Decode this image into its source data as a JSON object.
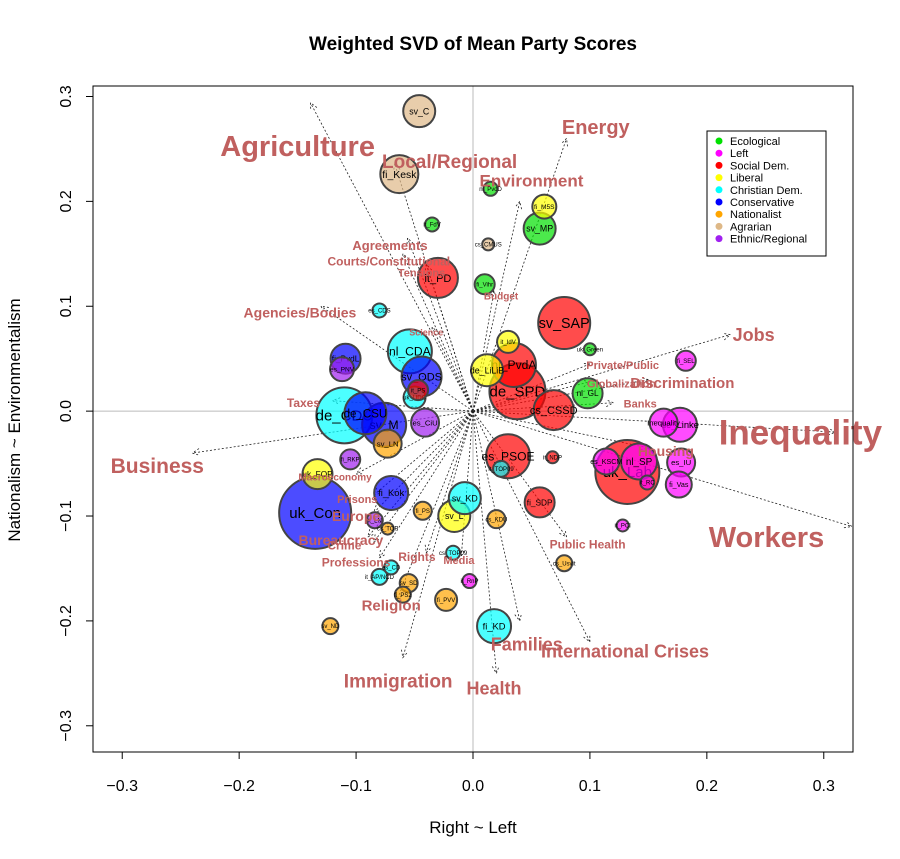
{
  "chart_data": {
    "type": "scatter",
    "title": "Weighted SVD of Mean Party Scores",
    "xlabel": "Right ~ Left",
    "ylabel": "Nationalism ~ Environmentalism",
    "xlim": [
      -0.325,
      0.325
    ],
    "ylim": [
      -0.325,
      0.31
    ],
    "xticks": [
      {
        "v": -0.3,
        "t": "−0.3"
      },
      {
        "v": -0.2,
        "t": "−0.2"
      },
      {
        "v": -0.1,
        "t": "−0.1"
      },
      {
        "v": 0.0,
        "t": "0.0"
      },
      {
        "v": 0.1,
        "t": "0.1"
      },
      {
        "v": 0.2,
        "t": "0.2"
      },
      {
        "v": 0.3,
        "t": "0.3"
      }
    ],
    "yticks": [
      {
        "v": -0.3,
        "t": "−0.3"
      },
      {
        "v": -0.2,
        "t": "−0.2"
      },
      {
        "v": -0.1,
        "t": "−0.1"
      },
      {
        "v": 0.0,
        "t": "0.0"
      },
      {
        "v": 0.1,
        "t": "0.1"
      },
      {
        "v": 0.2,
        "t": "0.2"
      },
      {
        "v": 0.3,
        "t": "0.3"
      }
    ],
    "zero_lines": true,
    "legend_position": "top-right",
    "legend": [
      {
        "label": "Ecological",
        "color": "#00e000"
      },
      {
        "label": "Left",
        "color": "#ff00ff"
      },
      {
        "label": "Social Dem.",
        "color": "#ff0000"
      },
      {
        "label": "Liberal",
        "color": "#ffff00"
      },
      {
        "label": "Christian Dem.",
        "color": "#00ffff"
      },
      {
        "label": "Conservative",
        "color": "#0000ff"
      },
      {
        "label": "Nationalist",
        "color": "#ffa500"
      },
      {
        "label": "Agrarian",
        "color": "#deb887"
      },
      {
        "label": "Ethnic/Regional",
        "color": "#a020f0"
      }
    ],
    "parties": [
      {
        "label": "sv_C",
        "x": -0.046,
        "y": 0.286,
        "r": 16,
        "family": "Agrarian"
      },
      {
        "label": "fi_Kesk",
        "x": -0.063,
        "y": 0.226,
        "r": 19,
        "family": "Agrarian"
      },
      {
        "label": "cs_CMUS",
        "x": 0.013,
        "y": 0.159,
        "r": 6,
        "family": "Agrarian"
      },
      {
        "label": "nl_PvdD",
        "x": 0.015,
        "y": 0.212,
        "r": 7,
        "family": "Ecological"
      },
      {
        "label": "fi_M5S",
        "x": 0.061,
        "y": 0.195,
        "r": 12,
        "family": "Liberal"
      },
      {
        "label": "sv_MP",
        "x": 0.057,
        "y": 0.174,
        "r": 16,
        "family": "Ecological"
      },
      {
        "label": "it_FdV",
        "x": -0.035,
        "y": 0.178,
        "r": 7,
        "family": "Ecological"
      },
      {
        "label": "it_PD",
        "x": -0.03,
        "y": 0.127,
        "r": 20,
        "family": "Social Dem."
      },
      {
        "label": "fi_Vihr",
        "x": 0.01,
        "y": 0.121,
        "r": 10,
        "family": "Ecological"
      },
      {
        "label": "es_CDS",
        "x": -0.08,
        "y": 0.096,
        "r": 7,
        "family": "Christian Dem."
      },
      {
        "label": "sv_SAP",
        "x": 0.078,
        "y": 0.084,
        "r": 26,
        "family": "Social Dem."
      },
      {
        "label": "uk_Green",
        "x": 0.1,
        "y": 0.059,
        "r": 6,
        "family": "Ecological"
      },
      {
        "label": "it_IdV",
        "x": 0.03,
        "y": 0.066,
        "r": 11,
        "family": "Liberal"
      },
      {
        "label": "nl_CDA",
        "x": -0.054,
        "y": 0.057,
        "r": 22,
        "family": "Christian Dem."
      },
      {
        "label": "nl_PvdA",
        "x": 0.035,
        "y": 0.044,
        "r": 22,
        "family": "Social Dem."
      },
      {
        "label": "fi_PvdL",
        "x": -0.109,
        "y": 0.05,
        "r": 15,
        "family": "Conservative"
      },
      {
        "label": "es_PNV",
        "x": -0.112,
        "y": 0.04,
        "r": 12,
        "family": "Ethnic/Regional"
      },
      {
        "label": "de_SPD",
        "x": 0.038,
        "y": 0.019,
        "r": 28,
        "family": "Social Dem."
      },
      {
        "label": "cs_CSSD",
        "x": 0.069,
        "y": 0.001,
        "r": 20,
        "family": "Social Dem."
      },
      {
        "label": "nl_GL",
        "x": 0.098,
        "y": 0.017,
        "r": 15,
        "family": "Ecological"
      },
      {
        "label": "sv_ODS",
        "x": -0.044,
        "y": 0.033,
        "r": 20,
        "family": "Conservative"
      },
      {
        "label": "de_LiLiB",
        "x": 0.012,
        "y": 0.039,
        "r": 16,
        "family": "Liberal"
      },
      {
        "label": "it_PS",
        "x": -0.047,
        "y": 0.02,
        "r": 10,
        "family": "Social Dem."
      },
      {
        "label": "uk_UDC",
        "x": -0.05,
        "y": 0.013,
        "r": 11,
        "family": "Christian Dem."
      },
      {
        "label": "de_CDU",
        "x": -0.11,
        "y": -0.004,
        "r": 28,
        "family": "Christian Dem."
      },
      {
        "label": "de_CSU",
        "x": -0.092,
        "y": -0.002,
        "r": 21,
        "family": "Conservative"
      },
      {
        "label": "sv_M",
        "x": -0.076,
        "y": -0.013,
        "r": 22,
        "family": "Conservative"
      },
      {
        "label": "es_CiU",
        "x": -0.041,
        "y": -0.011,
        "r": 14,
        "family": "Ethnic/Regional"
      },
      {
        "label": "de_Linke",
        "x": 0.177,
        "y": -0.013,
        "r": 17,
        "family": "Left"
      },
      {
        "label": "fi_SEL",
        "x": 0.182,
        "y": 0.048,
        "r": 10,
        "family": "Left"
      },
      {
        "label": "Inequality",
        "x": 0.163,
        "y": -0.011,
        "r": 14,
        "family": "Left"
      },
      {
        "label": "es_PSOE",
        "x": 0.03,
        "y": -0.043,
        "r": 22,
        "family": "Social Dem."
      },
      {
        "label": "uk_Lab",
        "x": 0.132,
        "y": -0.058,
        "r": 32,
        "family": "Social Dem."
      },
      {
        "label": "nl_SP",
        "x": 0.142,
        "y": -0.048,
        "r": 18,
        "family": "Left"
      },
      {
        "label": "es_KSCM",
        "x": 0.114,
        "y": -0.048,
        "r": 13,
        "family": "Left"
      },
      {
        "label": "es_IU",
        "x": 0.178,
        "y": -0.049,
        "r": 14,
        "family": "Left"
      },
      {
        "label": "fi_Vas",
        "x": 0.176,
        "y": -0.07,
        "r": 13,
        "family": "Left"
      },
      {
        "label": "it_RC",
        "x": 0.149,
        "y": -0.068,
        "r": 7,
        "family": "Left"
      },
      {
        "label": "it_PCI",
        "x": 0.128,
        "y": -0.109,
        "r": 6,
        "family": "Left"
      },
      {
        "label": "fi_SDP",
        "x": 0.057,
        "y": -0.087,
        "r": 15,
        "family": "Social Dem."
      },
      {
        "label": "it_NDP",
        "x": 0.068,
        "y": -0.044,
        "r": 6,
        "family": "Social Dem."
      },
      {
        "label": "it_TOP09",
        "x": 0.024,
        "y": -0.055,
        "r": 8,
        "family": "Christian Dem."
      },
      {
        "label": "uk_Con",
        "x": -0.135,
        "y": -0.097,
        "r": 36,
        "family": "Conservative"
      },
      {
        "label": "uk_FOP",
        "x": -0.133,
        "y": -0.06,
        "r": 15,
        "family": "Liberal"
      },
      {
        "label": "fi_RKP",
        "x": -0.105,
        "y": -0.046,
        "r": 10,
        "family": "Ethnic/Regional"
      },
      {
        "label": "sv_LN",
        "x": -0.073,
        "y": -0.031,
        "r": 14,
        "family": "Nationalist"
      },
      {
        "label": "fi_Kok",
        "x": -0.07,
        "y": -0.078,
        "r": 17,
        "family": "Conservative"
      },
      {
        "label": "fi_PS",
        "x": -0.043,
        "y": -0.095,
        "r": 9,
        "family": "Nationalist"
      },
      {
        "label": "sv_L",
        "x": -0.016,
        "y": -0.1,
        "r": 16,
        "family": "Liberal"
      },
      {
        "label": "sv_KD",
        "x": -0.007,
        "y": -0.083,
        "r": 16,
        "family": "Christian Dem."
      },
      {
        "label": "cs_KDU",
        "x": 0.02,
        "y": -0.103,
        "r": 9,
        "family": "Nationalist"
      },
      {
        "label": "it_LN",
        "x": -0.084,
        "y": -0.104,
        "r": 8,
        "family": "Ethnic/Regional"
      },
      {
        "label": "cs_TOP",
        "x": -0.073,
        "y": -0.112,
        "r": 6,
        "family": "Nationalist"
      },
      {
        "label": "cs_TOP09",
        "x": -0.017,
        "y": -0.135,
        "r": 7,
        "family": "Christian Dem."
      },
      {
        "label": "es_CD",
        "x": -0.07,
        "y": -0.149,
        "r": 7,
        "family": "Christian Dem."
      },
      {
        "label": "it_AP/NCD",
        "x": -0.08,
        "y": -0.158,
        "r": 8,
        "family": "Christian Dem."
      },
      {
        "label": "sv_SD",
        "x": -0.055,
        "y": -0.164,
        "r": 9,
        "family": "Nationalist"
      },
      {
        "label": "fi_PS2",
        "x": -0.06,
        "y": -0.175,
        "r": 8,
        "family": "Nationalist"
      },
      {
        "label": "fi_PVV",
        "x": -0.023,
        "y": -0.18,
        "r": 11,
        "family": "Nationalist"
      },
      {
        "label": "it_RnP",
        "x": -0.003,
        "y": -0.162,
        "r": 7,
        "family": "Left"
      },
      {
        "label": "cs_Usvit",
        "x": 0.078,
        "y": -0.145,
        "r": 8,
        "family": "Nationalist"
      },
      {
        "label": "fi_KD",
        "x": 0.018,
        "y": -0.205,
        "r": 17,
        "family": "Christian Dem."
      },
      {
        "label": "sv_ND",
        "x": -0.122,
        "y": -0.205,
        "r": 8,
        "family": "Nationalist"
      }
    ],
    "issues": [
      {
        "label": "Agriculture",
        "x": -0.15,
        "y": 0.253,
        "size": 29,
        "ax": -0.139,
        "ay": 0.294
      },
      {
        "label": "Local/Regional",
        "x": -0.02,
        "y": 0.238,
        "size": 19,
        "ax": -0.067,
        "ay": 0.236
      },
      {
        "label": "Energy",
        "x": 0.105,
        "y": 0.271,
        "size": 20,
        "ax": 0.08,
        "ay": 0.26
      },
      {
        "label": "Environment",
        "x": 0.05,
        "y": 0.22,
        "size": 17,
        "ax": 0.04,
        "ay": 0.2
      },
      {
        "label": "Agreements",
        "x": -0.071,
        "y": 0.158,
        "size": 13,
        "ax": -0.056,
        "ay": 0.165
      },
      {
        "label": "Courts/Constitutional",
        "x": -0.072,
        "y": 0.143,
        "size": 12,
        "ax": -0.06,
        "ay": 0.15
      },
      {
        "label": "Tensions",
        "x": -0.044,
        "y": 0.132,
        "size": 11,
        "ax": -0.04,
        "ay": 0.14
      },
      {
        "label": "Budget",
        "x": 0.024,
        "y": 0.11,
        "size": 10,
        "ax": 0.018,
        "ay": 0.115
      },
      {
        "label": "Agencies/Bodies",
        "x": -0.148,
        "y": 0.094,
        "size": 14,
        "ax": -0.13,
        "ay": 0.1
      },
      {
        "label": "Science",
        "x": -0.04,
        "y": 0.075,
        "size": 9,
        "ax": -0.035,
        "ay": 0.08
      },
      {
        "label": "Jobs",
        "x": 0.24,
        "y": 0.073,
        "size": 18,
        "ax": 0.22,
        "ay": 0.073
      },
      {
        "label": "Private/Public",
        "x": 0.128,
        "y": 0.044,
        "size": 11,
        "ax": 0.1,
        "ay": 0.045
      },
      {
        "label": "Globalization",
        "x": 0.127,
        "y": 0.026,
        "size": 11,
        "ax": 0.1,
        "ay": 0.028
      },
      {
        "label": "Discrimination",
        "x": 0.179,
        "y": 0.027,
        "size": 15,
        "ax": 0.15,
        "ay": 0.03
      },
      {
        "label": "Banks",
        "x": 0.143,
        "y": 0.007,
        "size": 11,
        "ax": 0.12,
        "ay": 0.008
      },
      {
        "label": "Taxes",
        "x": -0.145,
        "y": 0.008,
        "size": 12,
        "ax": -0.12,
        "ay": 0.01
      },
      {
        "label": "Inequality",
        "x": 0.28,
        "y": -0.02,
        "size": 35,
        "ax": 0.31,
        "ay": -0.02
      },
      {
        "label": "Housing",
        "x": 0.165,
        "y": -0.038,
        "size": 14,
        "ax": 0.15,
        "ay": -0.035
      },
      {
        "label": "Business",
        "x": -0.27,
        "y": -0.052,
        "size": 21,
        "ax": -0.24,
        "ay": -0.04
      },
      {
        "label": "Workers",
        "x": 0.251,
        "y": -0.12,
        "size": 29,
        "ax": 0.324,
        "ay": -0.11
      },
      {
        "label": "Macroeconomy",
        "x": -0.118,
        "y": -0.063,
        "size": 10,
        "ax": -0.1,
        "ay": -0.06
      },
      {
        "label": "Prisons",
        "x": -0.099,
        "y": -0.084,
        "size": 11,
        "ax": -0.085,
        "ay": -0.08
      },
      {
        "label": "Europe",
        "x": -0.1,
        "y": -0.1,
        "size": 14,
        "ax": -0.085,
        "ay": -0.097
      },
      {
        "label": "Bureaucracy",
        "x": -0.113,
        "y": -0.123,
        "size": 14,
        "ax": -0.09,
        "ay": -0.12
      },
      {
        "label": "Crime",
        "x": -0.11,
        "y": -0.128,
        "size": 12,
        "ax": -0.085,
        "ay": -0.125
      },
      {
        "label": "Rights",
        "x": -0.048,
        "y": -0.139,
        "size": 12,
        "ax": -0.04,
        "ay": -0.135
      },
      {
        "label": "Media",
        "x": -0.012,
        "y": -0.142,
        "size": 11,
        "ax": -0.01,
        "ay": -0.138
      },
      {
        "label": "Professions",
        "x": -0.1,
        "y": -0.144,
        "size": 12,
        "ax": -0.08,
        "ay": -0.14
      },
      {
        "label": "Public Health",
        "x": 0.098,
        "y": -0.127,
        "size": 12,
        "ax": 0.08,
        "ay": -0.12
      },
      {
        "label": "Religion",
        "x": -0.07,
        "y": -0.185,
        "size": 15,
        "ax": -0.065,
        "ay": -0.18
      },
      {
        "label": "Families",
        "x": 0.046,
        "y": -0.222,
        "size": 18,
        "ax": 0.04,
        "ay": -0.2
      },
      {
        "label": "International Crises",
        "x": 0.13,
        "y": -0.229,
        "size": 18,
        "ax": 0.1,
        "ay": -0.22
      },
      {
        "label": "Immigration",
        "x": -0.064,
        "y": -0.257,
        "size": 19,
        "ax": -0.06,
        "ay": -0.235
      },
      {
        "label": "Health",
        "x": 0.018,
        "y": -0.264,
        "size": 18,
        "ax": 0.02,
        "ay": -0.25
      }
    ]
  }
}
